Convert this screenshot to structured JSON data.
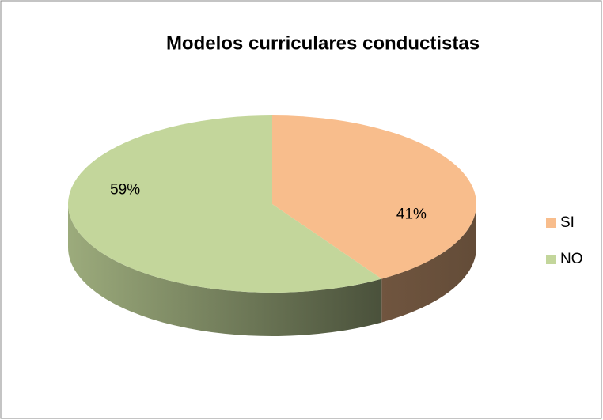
{
  "chart_data": {
    "type": "pie",
    "title": "Modelos curriculares conductistas",
    "categories": [
      "SI",
      "NO"
    ],
    "values": [
      41,
      59
    ],
    "value_labels": [
      "41%",
      "59%"
    ],
    "colors": [
      "#f8bd8c",
      "#c3d69b"
    ],
    "legend": "right"
  }
}
